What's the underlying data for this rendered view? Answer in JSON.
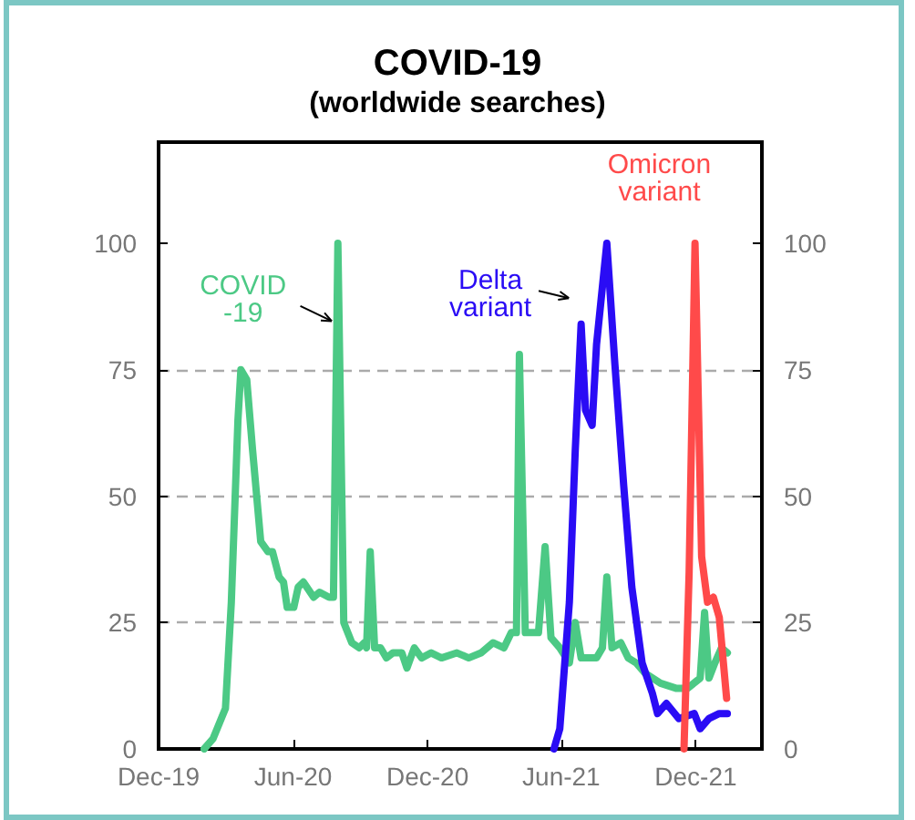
{
  "chart_data": {
    "type": "line",
    "title": "COVID-19",
    "subtitle": "(worldwide searches)",
    "xlim": [
      "2019-12-01",
      "2022-03-01"
    ],
    "xticks": [
      {
        "value": "2019-12-01",
        "label": "Dec-19"
      },
      {
        "value": "2020-06-01",
        "label": "Jun-20"
      },
      {
        "value": "2020-12-01",
        "label": "Dec-20"
      },
      {
        "value": "2021-06-01",
        "label": "Jun-21"
      },
      {
        "value": "2021-12-01",
        "label": "Dec-21"
      }
    ],
    "ylim": [
      0,
      120
    ],
    "yticks": [
      0,
      25,
      50,
      75,
      100
    ],
    "y2lim": [
      0,
      120
    ],
    "y2ticks": [
      0,
      25,
      50,
      75,
      100
    ],
    "grid": "y",
    "legend": false,
    "marker": "none",
    "line_style": "solid",
    "series": [
      {
        "name": "COVID\n-19",
        "color": "#4cc985",
        "x": [
          "2020-02-01",
          "2020-02-13",
          "2020-03-01",
          "2020-03-09",
          "2020-03-18",
          "2020-03-22",
          "2020-03-30",
          "2020-04-07",
          "2020-04-18",
          "2020-04-28",
          "2020-05-04",
          "2020-05-13",
          "2020-05-19",
          "2020-05-24",
          "2020-06-02",
          "2020-06-08",
          "2020-06-15",
          "2020-06-29",
          "2020-07-07",
          "2020-07-20",
          "2020-07-26",
          "2020-08-01",
          "2020-08-09",
          "2020-08-20",
          "2020-08-30",
          "2020-09-06",
          "2020-09-09",
          "2020-09-14",
          "2020-09-20",
          "2020-09-28",
          "2020-10-06",
          "2020-10-15",
          "2020-10-27",
          "2020-11-03",
          "2020-11-13",
          "2020-11-23",
          "2020-12-06",
          "2020-12-20",
          "2021-01-10",
          "2021-01-26",
          "2021-02-12",
          "2021-02-28",
          "2021-03-15",
          "2021-03-25",
          "2021-04-01",
          "2021-04-05",
          "2021-04-13",
          "2021-04-19",
          "2021-05-01",
          "2021-05-10",
          "2021-05-18",
          "2021-05-30",
          "2021-06-12",
          "2021-06-20",
          "2021-06-28",
          "2021-07-19",
          "2021-07-27",
          "2021-08-02",
          "2021-08-09",
          "2021-08-21",
          "2021-08-31",
          "2021-09-11",
          "2021-09-23",
          "2021-10-14",
          "2021-11-04",
          "2021-11-20",
          "2021-12-07",
          "2021-12-13",
          "2021-12-19",
          "2021-12-27",
          "2022-01-05",
          "2022-01-13"
        ],
        "values": [
          0,
          2,
          8,
          29,
          65,
          75,
          73,
          59,
          41,
          39,
          39,
          34,
          33,
          28,
          28,
          32,
          33,
          30,
          31,
          30,
          30,
          100,
          25,
          21,
          20,
          21,
          20,
          39,
          20,
          20,
          18,
          19,
          19,
          16,
          20,
          18,
          19,
          18,
          19,
          18,
          19,
          21,
          20,
          23,
          23,
          78,
          23,
          23,
          23,
          40,
          22,
          20,
          17,
          25,
          18,
          18,
          20,
          34,
          20,
          21,
          18,
          17,
          15,
          13,
          12,
          12,
          14,
          27,
          14,
          17,
          20,
          19
        ]
      },
      {
        "name": "Delta\nvariant",
        "color": "#2a0cf5",
        "x": [
          "2021-05-22",
          "2021-05-30",
          "2021-06-12",
          "2021-06-20",
          "2021-06-28",
          "2021-07-04",
          "2021-07-13",
          "2021-07-19",
          "2021-08-02",
          "2021-08-13",
          "2021-08-25",
          "2021-09-05",
          "2021-09-19",
          "2021-10-03",
          "2021-10-10",
          "2021-10-22",
          "2021-11-08",
          "2021-11-29",
          "2021-12-07",
          "2021-12-19",
          "2022-01-02",
          "2022-01-13"
        ],
        "values": [
          0,
          4,
          29,
          59,
          84,
          67,
          64,
          80,
          100,
          76,
          52,
          32,
          17,
          11,
          7,
          9,
          6,
          7,
          4,
          6,
          7,
          7
        ]
      },
      {
        "name": "Omicron\nvariant",
        "color": "#ff4a4a",
        "x": [
          "2021-11-15",
          "2021-11-22",
          "2021-11-30",
          "2021-12-09",
          "2021-12-17",
          "2021-12-25",
          "2022-01-02",
          "2022-01-12"
        ],
        "values": [
          0,
          35,
          100,
          38,
          29,
          30,
          26,
          10
        ]
      }
    ]
  }
}
